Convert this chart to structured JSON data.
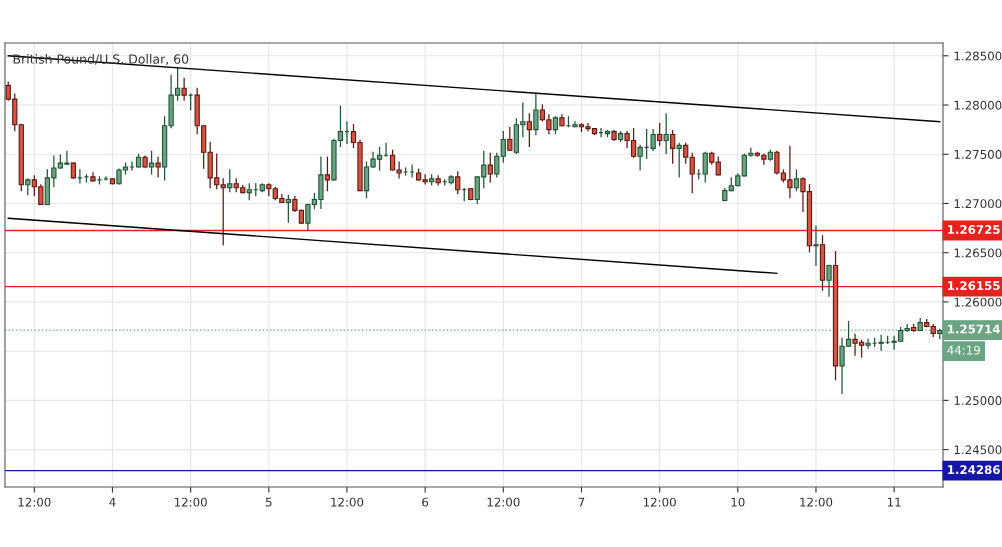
{
  "chart_data": {
    "type": "candlestick",
    "title": "British Pound/U.S. Dollar, 60",
    "categories": [
      null,
      null,
      null,
      null,
      "12:00",
      null,
      null,
      null,
      null,
      null,
      null,
      null,
      null,
      null,
      null,
      null,
      "4",
      null,
      null,
      null,
      null,
      null,
      null,
      null,
      null,
      null,
      null,
      null,
      "12:00",
      null,
      null,
      null,
      null,
      null,
      null,
      null,
      null,
      null,
      null,
      null,
      "5",
      null,
      null,
      null,
      null,
      null,
      null,
      null,
      null,
      null,
      null,
      null,
      "12:00",
      null,
      null,
      null,
      null,
      null,
      null,
      null,
      null,
      null,
      null,
      null,
      "6",
      null,
      null,
      null,
      null,
      null,
      null,
      null,
      null,
      null,
      null,
      null,
      "12:00",
      null,
      null,
      null,
      null,
      null,
      null,
      null,
      null,
      null,
      null,
      null,
      "7",
      null,
      null,
      null,
      null,
      null,
      null,
      null,
      null,
      null,
      null,
      null,
      "12:00",
      null,
      null,
      null,
      null,
      null,
      null,
      null,
      null,
      null,
      null,
      null,
      "10",
      null,
      null,
      null,
      null,
      null,
      null,
      null,
      null,
      null,
      null,
      null,
      "12:00",
      null,
      null,
      null,
      null,
      null,
      null,
      null,
      null,
      null,
      null,
      null,
      "11",
      null,
      null,
      null,
      null,
      null,
      null,
      null
    ],
    "ohlc": [
      [
        1.282,
        1.2823,
        1.2805,
        1.2806
      ],
      [
        1.2806,
        1.2811,
        1.2774,
        1.278
      ],
      [
        1.278,
        1.278,
        1.2713,
        1.2719
      ],
      [
        1.2719,
        1.2725,
        1.2709,
        1.2724
      ],
      [
        1.2724,
        1.2728,
        1.2708,
        1.2717
      ],
      [
        1.2717,
        1.2719,
        1.2699,
        1.2699
      ],
      [
        1.2699,
        1.2734,
        1.2699,
        1.2726
      ],
      [
        1.2726,
        1.2748,
        1.2717,
        1.2736
      ],
      [
        1.2736,
        1.2749,
        1.2736,
        1.2741
      ],
      [
        1.274,
        1.2753,
        1.274,
        1.2741
      ],
      [
        1.2741,
        1.2741,
        1.2726,
        1.2726
      ],
      [
        1.2726,
        1.2734,
        1.2721,
        1.2726
      ],
      [
        1.2727,
        1.2729,
        1.2722,
        1.2727
      ],
      [
        1.2727,
        1.2731,
        1.2723,
        1.2723
      ],
      [
        1.2724,
        1.2727,
        1.272,
        1.2724
      ],
      [
        1.2725,
        1.2727,
        1.2724,
        1.2725
      ],
      [
        1.2725,
        1.2725,
        1.272,
        1.272
      ],
      [
        1.272,
        1.2735,
        1.272,
        1.2734
      ],
      [
        1.2734,
        1.2741,
        1.273,
        1.2737
      ],
      [
        1.2737,
        1.2742,
        1.2734,
        1.2737
      ],
      [
        1.2737,
        1.275,
        1.2737,
        1.2747
      ],
      [
        1.2747,
        1.2748,
        1.2737,
        1.2737
      ],
      [
        1.2737,
        1.2753,
        1.273,
        1.2741
      ],
      [
        1.2741,
        1.2747,
        1.2727,
        1.2737
      ],
      [
        1.2737,
        1.2788,
        1.2724,
        1.2779
      ],
      [
        1.2779,
        1.283,
        1.2777,
        1.281
      ],
      [
        1.281,
        1.2837,
        1.2805,
        1.2817
      ],
      [
        1.2817,
        1.2827,
        1.2805,
        1.281
      ],
      [
        1.281,
        1.2811,
        1.2795,
        1.281
      ],
      [
        1.281,
        1.2817,
        1.2771,
        1.2779
      ],
      [
        1.2779,
        1.2779,
        1.2736,
        1.2752
      ],
      [
        1.2752,
        1.2762,
        1.2716,
        1.2726
      ],
      [
        1.2726,
        1.275,
        1.2715,
        1.2719
      ],
      [
        1.2719,
        1.2725,
        1.2658,
        1.2716
      ],
      [
        1.2716,
        1.2734,
        1.2712,
        1.272
      ],
      [
        1.272,
        1.2725,
        1.2712,
        1.2716
      ],
      [
        1.2716,
        1.2718,
        1.2711,
        1.2711
      ],
      [
        1.2711,
        1.272,
        1.2704,
        1.2714
      ],
      [
        1.2714,
        1.272,
        1.2708,
        1.2714
      ],
      [
        1.2713,
        1.272,
        1.2712,
        1.2719
      ],
      [
        1.2719,
        1.272,
        1.2708,
        1.2715
      ],
      [
        1.2715,
        1.2716,
        1.2704,
        1.2705
      ],
      [
        1.2705,
        1.2709,
        1.2701,
        1.2701
      ],
      [
        1.2701,
        1.2708,
        1.2681,
        1.2704
      ],
      [
        1.2704,
        1.2707,
        1.2692,
        1.2693
      ],
      [
        1.2693,
        1.2693,
        1.268,
        1.268
      ],
      [
        1.268,
        1.2699,
        1.2673,
        1.2699
      ],
      [
        1.2699,
        1.271,
        1.2695,
        1.2704
      ],
      [
        1.2704,
        1.2747,
        1.2695,
        1.2729
      ],
      [
        1.2729,
        1.2747,
        1.2713,
        1.2724
      ],
      [
        1.2724,
        1.2765,
        1.2724,
        1.2764
      ],
      [
        1.2764,
        1.2799,
        1.2758,
        1.2773
      ],
      [
        1.2773,
        1.2783,
        1.2761,
        1.2773
      ],
      [
        1.2773,
        1.278,
        1.2757,
        1.2762
      ],
      [
        1.2762,
        1.2764,
        1.2713,
        1.2713
      ],
      [
        1.2713,
        1.2742,
        1.2706,
        1.2737
      ],
      [
        1.2737,
        1.2752,
        1.2737,
        1.2745
      ],
      [
        1.2745,
        1.2757,
        1.2734,
        1.2749
      ],
      [
        1.2749,
        1.2761,
        1.2748,
        1.2749
      ],
      [
        1.2749,
        1.2754,
        1.2734,
        1.2734
      ],
      [
        1.2734,
        1.2742,
        1.2726,
        1.2731
      ],
      [
        1.2732,
        1.2736,
        1.2729,
        1.2732
      ],
      [
        1.2732,
        1.2739,
        1.2727,
        1.2732
      ],
      [
        1.2731,
        1.2735,
        1.2724,
        1.2724
      ],
      [
        1.2724,
        1.2729,
        1.272,
        1.2722
      ],
      [
        1.2722,
        1.2729,
        1.2719,
        1.2725
      ],
      [
        1.2725,
        1.2728,
        1.2719,
        1.2721
      ],
      [
        1.2722,
        1.2724,
        1.2719,
        1.2722
      ],
      [
        1.2721,
        1.2728,
        1.272,
        1.2727
      ],
      [
        1.2727,
        1.2732,
        1.271,
        1.2714
      ],
      [
        1.2714,
        1.2715,
        1.2703,
        1.2714
      ],
      [
        1.2715,
        1.2715,
        1.2704,
        1.2704
      ],
      [
        1.2704,
        1.2727,
        1.27,
        1.2727
      ],
      [
        1.2727,
        1.2753,
        1.2716,
        1.2739
      ],
      [
        1.2739,
        1.2751,
        1.2722,
        1.273
      ],
      [
        1.273,
        1.2751,
        1.2727,
        1.2748
      ],
      [
        1.2748,
        1.2773,
        1.2742,
        1.2765
      ],
      [
        1.2765,
        1.2777,
        1.2754,
        1.2754
      ],
      [
        1.2752,
        1.2786,
        1.2751,
        1.278
      ],
      [
        1.278,
        1.2802,
        1.2768,
        1.2783
      ],
      [
        1.2783,
        1.2791,
        1.2758,
        1.2775
      ],
      [
        1.2775,
        1.2812,
        1.277,
        1.2795
      ],
      [
        1.2795,
        1.28,
        1.2784,
        1.2785
      ],
      [
        1.2785,
        1.279,
        1.2771,
        1.2775
      ],
      [
        1.2775,
        1.2788,
        1.2771,
        1.2787
      ],
      [
        1.2787,
        1.279,
        1.2779,
        1.2779
      ],
      [
        1.2779,
        1.2788,
        1.2778,
        1.2779
      ],
      [
        1.2778,
        1.2783,
        1.2778,
        1.278
      ],
      [
        1.278,
        1.2781,
        1.2773,
        1.2778
      ],
      [
        1.2778,
        1.2781,
        1.2774,
        1.2776
      ],
      [
        1.2776,
        1.2776,
        1.277,
        1.2771
      ],
      [
        1.2772,
        1.2776,
        1.2768,
        1.2772
      ],
      [
        1.2771,
        1.2774,
        1.2768,
        1.2773
      ],
      [
        1.2773,
        1.2774,
        1.2764,
        1.2765
      ],
      [
        1.2765,
        1.2773,
        1.2763,
        1.2771
      ],
      [
        1.2771,
        1.2773,
        1.2757,
        1.2764
      ],
      [
        1.2764,
        1.2776,
        1.2747,
        1.2748
      ],
      [
        1.2748,
        1.2759,
        1.2734,
        1.2757
      ],
      [
        1.2757,
        1.2775,
        1.2746,
        1.2757
      ],
      [
        1.2756,
        1.2775,
        1.2754,
        1.277
      ],
      [
        1.277,
        1.2781,
        1.2759,
        1.2764
      ],
      [
        1.2764,
        1.2791,
        1.2751,
        1.277
      ],
      [
        1.277,
        1.2774,
        1.2741,
        1.2756
      ],
      [
        1.2756,
        1.2761,
        1.2727,
        1.2759
      ],
      [
        1.2759,
        1.2761,
        1.2741,
        1.2747
      ],
      [
        1.2747,
        1.2751,
        1.2711,
        1.273
      ],
      [
        1.273,
        1.2734,
        1.2725,
        1.273
      ],
      [
        1.273,
        1.2752,
        1.2722,
        1.2751
      ],
      [
        1.2751,
        1.2752,
        1.274,
        1.2742
      ],
      [
        1.2742,
        1.2747,
        1.2729,
        1.2729
      ],
      [
        1.2703,
        1.2715,
        1.2703,
        1.2713
      ],
      [
        1.2713,
        1.2726,
        1.2713,
        1.2718
      ],
      [
        1.2718,
        1.273,
        1.2718,
        1.2728
      ],
      [
        1.2728,
        1.275,
        1.2728,
        1.2749
      ],
      [
        1.2749,
        1.2756,
        1.2748,
        1.2751
      ],
      [
        1.2751,
        1.2752,
        1.2748,
        1.2749
      ],
      [
        1.2749,
        1.275,
        1.274,
        1.2745
      ],
      [
        1.2745,
        1.2754,
        1.2744,
        1.2752
      ],
      [
        1.2752,
        1.2753,
        1.273,
        1.2731
      ],
      [
        1.2731,
        1.2734,
        1.2722,
        1.2724
      ],
      [
        1.2724,
        1.2758,
        1.2706,
        1.2716
      ],
      [
        1.2716,
        1.2734,
        1.2713,
        1.2725
      ],
      [
        1.2725,
        1.2726,
        1.2692,
        1.2712
      ],
      [
        1.2712,
        1.2719,
        1.2651,
        1.2657
      ],
      [
        1.2657,
        1.2677,
        1.2637,
        1.2658
      ],
      [
        1.2658,
        1.2667,
        1.2612,
        1.2622
      ],
      [
        1.2622,
        1.2637,
        1.2606,
        1.2637
      ],
      [
        1.2637,
        1.2651,
        1.2521,
        1.2535
      ],
      [
        1.2535,
        1.2563,
        1.2507,
        1.2555
      ],
      [
        1.2555,
        1.258,
        1.2555,
        1.2562
      ],
      [
        1.2562,
        1.2567,
        1.2546,
        1.2558
      ],
      [
        1.2559,
        1.2561,
        1.2544,
        1.2556
      ],
      [
        1.2556,
        1.2562,
        1.2553,
        1.2558
      ],
      [
        1.2558,
        1.2563,
        1.2555,
        1.2558
      ],
      [
        1.2558,
        1.2566,
        1.2551,
        1.2559
      ],
      [
        1.2559,
        1.2565,
        1.2558,
        1.2559
      ],
      [
        1.2559,
        1.2565,
        1.2552,
        1.256
      ],
      [
        1.256,
        1.2574,
        1.256,
        1.2571
      ],
      [
        1.2571,
        1.2577,
        1.257,
        1.2573
      ],
      [
        1.2574,
        1.2577,
        1.257,
        1.2571
      ],
      [
        1.2571,
        1.2583,
        1.2571,
        1.2579
      ],
      [
        1.2579,
        1.2582,
        1.2575,
        1.2575
      ],
      [
        1.2575,
        1.2577,
        1.2565,
        1.2568
      ],
      [
        1.2568,
        1.2572,
        1.2563,
        1.2571
      ]
    ],
    "series": [
      {
        "type": "line",
        "color": "#000000",
        "values": [
          1.285,
          null,
          null,
          null,
          null,
          null,
          null,
          null,
          null,
          null,
          null,
          null,
          null,
          null,
          null,
          null,
          null,
          null,
          null,
          null,
          null,
          null,
          null,
          null,
          null,
          null,
          null,
          null,
          null,
          null,
          null,
          null,
          null,
          null,
          null,
          null,
          null,
          null,
          null,
          null,
          null,
          null,
          null,
          null,
          null,
          null,
          null,
          null,
          null,
          null,
          null,
          null,
          null,
          null,
          null,
          null,
          null,
          null,
          null,
          null,
          null,
          null,
          null,
          null,
          null,
          null,
          null,
          null,
          null,
          null,
          null,
          null,
          null,
          null,
          null,
          null,
          null,
          null,
          null,
          null,
          null,
          null,
          null,
          null,
          null,
          null,
          null,
          null,
          null,
          null,
          null,
          null,
          null,
          null,
          null,
          null,
          null,
          null,
          null,
          null,
          null,
          null,
          null,
          null,
          null,
          null,
          null,
          null,
          null,
          null,
          null,
          null,
          null,
          null,
          null,
          null,
          null,
          null,
          null,
          null,
          null,
          null,
          null,
          null,
          null,
          null,
          null,
          null,
          null,
          null,
          null,
          null,
          null,
          null,
          null,
          null,
          null,
          null,
          null,
          null,
          null,
          null,
          null,
          1.2783
        ]
      },
      {
        "type": "line",
        "color": "#000000",
        "values": [
          1.2685,
          null,
          null,
          null,
          null,
          null,
          null,
          null,
          null,
          null,
          null,
          null,
          null,
          null,
          null,
          null,
          null,
          null,
          null,
          null,
          null,
          null,
          null,
          null,
          null,
          null,
          null,
          null,
          null,
          null,
          null,
          null,
          null,
          null,
          null,
          null,
          null,
          null,
          null,
          null,
          null,
          null,
          null,
          null,
          null,
          null,
          null,
          null,
          null,
          null,
          null,
          null,
          null,
          null,
          null,
          null,
          null,
          null,
          null,
          null,
          null,
          null,
          null,
          null,
          null,
          null,
          null,
          null,
          null,
          null,
          null,
          null,
          null,
          null,
          null,
          null,
          null,
          null,
          null,
          null,
          null,
          null,
          null,
          null,
          null,
          null,
          null,
          null,
          null,
          null,
          null,
          null,
          null,
          null,
          null,
          null,
          null,
          null,
          null,
          null,
          null,
          null,
          null,
          null,
          null,
          null,
          null,
          null,
          null,
          null,
          null,
          null,
          null,
          null,
          null,
          null,
          null,
          null,
          1.2629,
          null,
          null,
          null,
          null,
          null,
          null,
          null,
          null,
          null,
          null,
          null,
          null,
          null,
          null,
          null,
          null,
          null,
          null,
          null,
          null,
          null,
          null,
          null,
          null,
          null
        ]
      }
    ],
    "ref_lines": [
      {
        "axis": "y",
        "value": 1.26725,
        "label": "1.26725",
        "color": "#e8211c"
      },
      {
        "axis": "y",
        "value": 1.26155,
        "label": "1.26155",
        "color": "#e8211c"
      },
      {
        "axis": "y",
        "value": 1.25714,
        "label": "1.25714",
        "color": "#6ba583",
        "line_style": "dotted"
      },
      {
        "axis": "y",
        "value": 1.24286,
        "label": "1.24286",
        "color": "#1515a8"
      }
    ],
    "annotations": [
      {
        "text": "44:19",
        "y": 1.255
      }
    ],
    "ylim": [
      1.2412,
      1.2863
    ],
    "yticks": [
      {
        "value": 1.245,
        "label": "1.24500"
      },
      {
        "value": 1.25,
        "label": "1.25000"
      },
      {
        "value": 1.255,
        "label": null
      },
      {
        "value": 1.26,
        "label": "1.26000"
      },
      {
        "value": 1.265,
        "label": "1.26500"
      },
      {
        "value": 1.27,
        "label": "1.27000"
      },
      {
        "value": 1.275,
        "label": "1.27500"
      },
      {
        "value": 1.28,
        "label": "1.28000"
      },
      {
        "value": 1.285,
        "label": "1.28500"
      }
    ],
    "grid": true
  }
}
